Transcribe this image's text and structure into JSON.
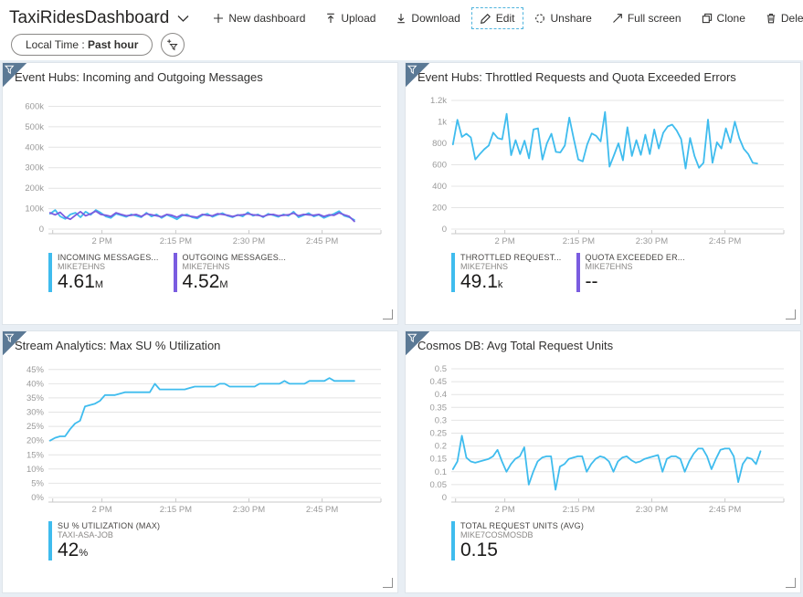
{
  "header": {
    "title": "TaxiRidesDashboard",
    "toolbar": [
      {
        "id": "new-dashboard",
        "label": "New dashboard",
        "icon": "plus-icon",
        "focused": false
      },
      {
        "id": "upload",
        "label": "Upload",
        "icon": "upload-icon",
        "focused": false
      },
      {
        "id": "download",
        "label": "Download",
        "icon": "download-icon",
        "focused": false
      },
      {
        "id": "edit",
        "label": "Edit",
        "icon": "pencil-icon",
        "focused": true
      },
      {
        "id": "unshare",
        "label": "Unshare",
        "icon": "unshare-icon",
        "focused": false
      },
      {
        "id": "fullscreen",
        "label": "Full screen",
        "icon": "fullscreen-icon",
        "focused": false
      },
      {
        "id": "clone",
        "label": "Clone",
        "icon": "clone-icon",
        "focused": false
      },
      {
        "id": "delete",
        "label": "Delete",
        "icon": "delete-icon",
        "focused": false
      }
    ]
  },
  "filter_bar": {
    "time_filter": {
      "prefix": "Local Time : ",
      "value": "Past hour"
    },
    "add_filter_icon": "add-filter-funnel-icon"
  },
  "colors": {
    "accent_cyan": "#3fbcee",
    "accent_purple": "#7a5ce0",
    "tile_badge": "#5b7995",
    "grid_line": "#e4e4e4",
    "axis_line": "#c9c9c9",
    "axis_text": "#9a9a9a",
    "dashboard_bg": "#e8eef4"
  },
  "tiles": [
    {
      "id": "eventhubs-messages",
      "title": "Event Hubs: Incoming and Outgoing Messages",
      "legend": [
        {
          "label": "INCOMING MESSAGES...",
          "resource": "MIKE7EHNS",
          "value": "4.61",
          "unit": "M",
          "color": "#3fbcee"
        },
        {
          "label": "OUTGOING MESSAGES...",
          "resource": "MIKE7EHNS",
          "value": "4.52",
          "unit": "M",
          "color": "#7a5ce0"
        }
      ],
      "chart": {
        "type": "line",
        "ylim": [
          0,
          660
        ],
        "yticks": [
          {
            "v": 0,
            "label": "0"
          },
          {
            "v": 100,
            "label": "100k"
          },
          {
            "v": 200,
            "label": "200k"
          },
          {
            "v": 300,
            "label": "300k"
          },
          {
            "v": 400,
            "label": "400k"
          },
          {
            "v": 500,
            "label": "500k"
          },
          {
            "v": 600,
            "label": "600k"
          }
        ],
        "xticks": [
          {
            "f": 0.013,
            "label": ""
          },
          {
            "f": 0.161,
            "label": "2 PM"
          },
          {
            "f": 0.383,
            "label": "2:15 PM"
          },
          {
            "f": 0.603,
            "label": "2:30 PM"
          },
          {
            "f": 0.823,
            "label": "2:45 PM"
          },
          {
            "f": 1,
            "label": ""
          }
        ],
        "series": [
          {
            "name": "Incoming Messages (k)",
            "color": "#3fbcee",
            "span": [
              0.005,
              0.92
            ],
            "values": [
              75,
              93,
              62,
              50,
              72,
              80,
              58,
              85,
              70,
              93,
              80,
              62,
              55,
              75,
              68,
              60,
              72,
              65,
              58,
              80,
              62,
              72,
              55,
              70,
              60,
              48,
              65,
              72,
              58,
              52,
              68,
              75,
              60,
              70,
              78,
              65,
              58,
              70,
              62,
              82,
              65,
              72,
              58,
              75,
              68,
              60,
              72,
              65,
              85,
              58,
              68,
              78,
              62,
              70,
              55,
              65,
              75,
              88,
              65,
              58,
              45
            ]
          },
          {
            "name": "Outgoing Messages (k)",
            "color": "#7a5ce0",
            "span": [
              0.005,
              0.92
            ],
            "values": [
              80,
              70,
              82,
              58,
              48,
              68,
              85,
              65,
              75,
              88,
              72,
              68,
              62,
              80,
              72,
              65,
              68,
              72,
              62,
              75,
              70,
              65,
              60,
              72,
              68,
              58,
              70,
              65,
              62,
              58,
              72,
              68,
              65,
              75,
              72,
              68,
              62,
              68,
              70,
              75,
              70,
              68,
              62,
              70,
              72,
              65,
              68,
              70,
              78,
              65,
              72,
              70,
              68,
              72,
              62,
              70,
              68,
              80,
              70,
              62,
              38
            ]
          }
        ]
      }
    },
    {
      "id": "eventhubs-throttled",
      "title": "Event Hubs: Throttled Requests and Quota Exceeded Errors",
      "legend": [
        {
          "label": "THROTTLED REQUEST...",
          "resource": "MIKE7EHNS",
          "value": "49.1",
          "unit": "k",
          "color": "#3fbcee"
        },
        {
          "label": "QUOTA EXCEEDED ER...",
          "resource": "MIKE7EHNS",
          "value": "--",
          "unit": "",
          "color": "#7a5ce0"
        }
      ],
      "chart": {
        "type": "line",
        "ylim": [
          0,
          1260
        ],
        "yticks": [
          {
            "v": 0,
            "label": "0"
          },
          {
            "v": 200,
            "label": "200"
          },
          {
            "v": 400,
            "label": "400"
          },
          {
            "v": 600,
            "label": "600"
          },
          {
            "v": 800,
            "label": "800"
          },
          {
            "v": 1000,
            "label": "1k"
          },
          {
            "v": 1200,
            "label": "1.2k"
          }
        ],
        "xticks": [
          {
            "f": 0.013,
            "label": ""
          },
          {
            "f": 0.161,
            "label": "2 PM"
          },
          {
            "f": 0.383,
            "label": "2:15 PM"
          },
          {
            "f": 0.603,
            "label": "2:30 PM"
          },
          {
            "f": 0.823,
            "label": "2:45 PM"
          },
          {
            "f": 1,
            "label": ""
          }
        ],
        "series": [
          {
            "name": "Throttled Requests",
            "color": "#3fbcee",
            "span": [
              0.005,
              0.92
            ],
            "values": [
              790,
              1020,
              860,
              890,
              855,
              650,
              700,
              745,
              780,
              900,
              850,
              838,
              1075,
              690,
              830,
              700,
              825,
              660,
              930,
              940,
              650,
              800,
              890,
              720,
              715,
              780,
              1040,
              840,
              650,
              632,
              790,
              892,
              870,
              818,
              1092,
              582,
              690,
              800,
              642,
              950,
              682,
              830,
              692,
              880,
              700,
              930,
              752,
              898,
              958,
              975,
              920,
              840,
              565,
              850,
              680,
              572,
              618,
              1022,
              618,
              810,
              752,
              940,
              808,
              1002,
              848,
              748,
              700,
              618,
              612
            ]
          }
        ]
      }
    },
    {
      "id": "asa-utilization",
      "title": "Stream Analytics: Max SU % Utilization",
      "legend": [
        {
          "label": "SU % UTILIZATION (MAX)",
          "resource": "TAXI-ASA-JOB",
          "value": "42",
          "unit": "%",
          "color": "#3fbcee"
        }
      ],
      "chart": {
        "type": "line",
        "ylim": [
          0,
          47.5
        ],
        "yticks": [
          {
            "v": 0,
            "label": "0%"
          },
          {
            "v": 5,
            "label": "5%"
          },
          {
            "v": 10,
            "label": "10%"
          },
          {
            "v": 15,
            "label": "15%"
          },
          {
            "v": 20,
            "label": "20%"
          },
          {
            "v": 25,
            "label": "25%"
          },
          {
            "v": 30,
            "label": "30%"
          },
          {
            "v": 35,
            "label": "35%"
          },
          {
            "v": 40,
            "label": "40%"
          },
          {
            "v": 45,
            "label": "45%"
          }
        ],
        "xticks": [
          {
            "f": 0.013,
            "label": ""
          },
          {
            "f": 0.161,
            "label": "2 PM"
          },
          {
            "f": 0.383,
            "label": "2:15 PM"
          },
          {
            "f": 0.603,
            "label": "2:30 PM"
          },
          {
            "f": 0.823,
            "label": "2:45 PM"
          },
          {
            "f": 1,
            "label": ""
          }
        ],
        "series": [
          {
            "name": "SU % Utilization (Max)",
            "color": "#3fbcee",
            "span": [
              0.005,
              0.92
            ],
            "values": [
              20,
              21,
              21.5,
              21.5,
              24,
              26,
              27,
              32,
              32.5,
              33,
              34,
              36,
              36,
              36,
              36.5,
              37,
              37,
              37,
              37,
              37,
              37,
              40,
              38,
              38,
              38,
              38,
              38,
              38,
              38.5,
              39,
              39,
              39,
              39,
              39,
              40,
              40,
              39,
              39,
              39,
              39,
              39,
              39,
              40,
              40,
              40,
              40,
              40,
              41,
              40,
              40,
              40,
              40,
              41,
              41,
              41,
              41,
              42,
              41,
              41,
              41,
              41,
              41
            ]
          }
        ]
      }
    },
    {
      "id": "cosmos-ru",
      "title": "Cosmos DB: Avg Total Request Units",
      "legend": [
        {
          "label": "TOTAL REQUEST UNITS (AVG)",
          "resource": "MIKE7COSMOSDB",
          "value": "0.15",
          "unit": "",
          "color": "#3fbcee"
        }
      ],
      "chart": {
        "type": "line",
        "ylim": [
          0,
          0.525
        ],
        "yticks": [
          {
            "v": 0,
            "label": "0"
          },
          {
            "v": 0.05,
            "label": "0.05"
          },
          {
            "v": 0.1,
            "label": "0.1"
          },
          {
            "v": 0.15,
            "label": "0.15"
          },
          {
            "v": 0.2,
            "label": "0.2"
          },
          {
            "v": 0.25,
            "label": "0.25"
          },
          {
            "v": 0.3,
            "label": "0.3"
          },
          {
            "v": 0.35,
            "label": "0.35"
          },
          {
            "v": 0.4,
            "label": "0.4"
          },
          {
            "v": 0.45,
            "label": "0.45"
          },
          {
            "v": 0.5,
            "label": "0.5"
          }
        ],
        "xticks": [
          {
            "f": 0.013,
            "label": ""
          },
          {
            "f": 0.161,
            "label": "2 PM"
          },
          {
            "f": 0.383,
            "label": "2:15 PM"
          },
          {
            "f": 0.603,
            "label": "2:30 PM"
          },
          {
            "f": 0.823,
            "label": "2:45 PM"
          },
          {
            "f": 1,
            "label": ""
          }
        ],
        "series": [
          {
            "name": "Total Request Units (Avg)",
            "color": "#3fbcee",
            "span": [
              0.005,
              0.93
            ],
            "values": [
              0.11,
              0.14,
              0.24,
              0.155,
              0.14,
              0.135,
              0.14,
              0.145,
              0.15,
              0.16,
              0.185,
              0.14,
              0.1,
              0.13,
              0.15,
              0.16,
              0.195,
              0.05,
              0.1,
              0.14,
              0.155,
              0.16,
              0.16,
              0.03,
              0.12,
              0.13,
              0.15,
              0.155,
              0.16,
              0.16,
              0.1,
              0.13,
              0.15,
              0.16,
              0.155,
              0.14,
              0.1,
              0.14,
              0.155,
              0.16,
              0.145,
              0.135,
              0.14,
              0.15,
              0.155,
              0.16,
              0.165,
              0.1,
              0.15,
              0.16,
              0.16,
              0.15,
              0.1,
              0.14,
              0.17,
              0.19,
              0.19,
              0.16,
              0.11,
              0.15,
              0.185,
              0.19,
              0.19,
              0.16,
              0.06,
              0.13,
              0.155,
              0.15,
              0.13,
              0.18
            ]
          }
        ]
      }
    }
  ]
}
